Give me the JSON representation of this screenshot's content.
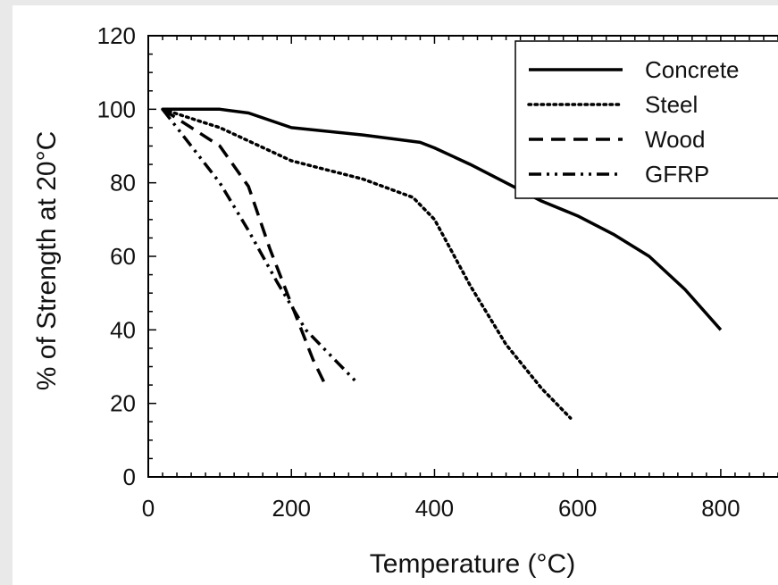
{
  "chart_data": {
    "type": "line",
    "xlabel": "Temperature (°C)",
    "ylabel": "% of Strength at 20°C",
    "xlim": [
      0,
      880
    ],
    "ylim": [
      0,
      120
    ],
    "x_ticks": [
      "0",
      "200",
      "400",
      "600",
      "800"
    ],
    "y_ticks": [
      "0",
      "20",
      "40",
      "60",
      "80",
      "100",
      "120"
    ],
    "legend_position": "top-right",
    "grid": false,
    "series": [
      {
        "name": "Concrete",
        "style": "solid",
        "x": [
          20,
          100,
          140,
          200,
          300,
          380,
          400,
          450,
          500,
          550,
          600,
          650,
          700,
          750,
          800
        ],
        "y": [
          100,
          100,
          99,
          95,
          93,
          91,
          89.5,
          85,
          80,
          75,
          71,
          66,
          60,
          51,
          40
        ]
      },
      {
        "name": "Steel",
        "style": "dotted",
        "x": [
          20,
          100,
          200,
          300,
          370,
          400,
          450,
          500,
          550,
          590
        ],
        "y": [
          100,
          95,
          86,
          81,
          76,
          70,
          52,
          36,
          24,
          16
        ]
      },
      {
        "name": "Wood",
        "style": "dashed",
        "x": [
          20,
          60,
          100,
          140,
          170,
          200,
          230,
          250
        ],
        "y": [
          100,
          95,
          90,
          79,
          62,
          47,
          32,
          24
        ]
      },
      {
        "name": "GFRP",
        "style": "dashdot",
        "x": [
          20,
          60,
          100,
          140,
          180,
          220,
          260,
          290
        ],
        "y": [
          100,
          90,
          80,
          67,
          53,
          40,
          32,
          26
        ]
      }
    ]
  }
}
